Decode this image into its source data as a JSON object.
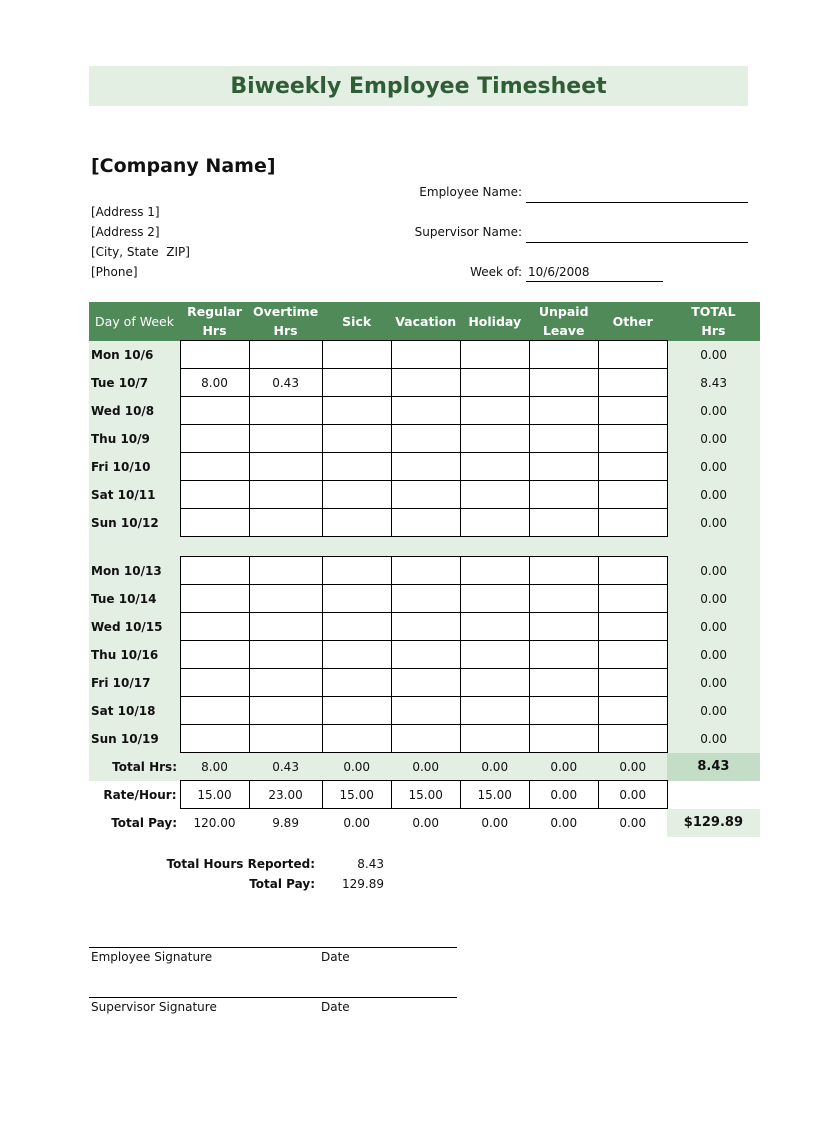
{
  "title": "Biweekly Employee Timesheet",
  "company": {
    "name": "[Company Name]",
    "address1": "[Address 1]",
    "address2": "[Address 2]",
    "city_state_zip": "[City, State  ZIP]",
    "phone": "[Phone]"
  },
  "fields": {
    "employee_name_label": "Employee Name:",
    "employee_name_value": "",
    "supervisor_name_label": "Supervisor Name:",
    "supervisor_name_value": "",
    "week_of_label": "Week of:",
    "week_of_value": "10/6/2008"
  },
  "columns": [
    "Day of Week",
    "Regular Hrs",
    "Overtime Hrs",
    "Sick",
    "Vacation",
    "Holiday",
    "Unpaid Leave",
    "Other",
    "TOTAL Hrs"
  ],
  "week1": [
    {
      "day": "Mon 10/6",
      "values": [
        "",
        "",
        "",
        "",
        "",
        "",
        ""
      ],
      "total": "0.00"
    },
    {
      "day": "Tue 10/7",
      "values": [
        "8.00",
        "0.43",
        "",
        "",
        "",
        "",
        ""
      ],
      "total": "8.43"
    },
    {
      "day": "Wed 10/8",
      "values": [
        "",
        "",
        "",
        "",
        "",
        "",
        ""
      ],
      "total": "0.00"
    },
    {
      "day": "Thu 10/9",
      "values": [
        "",
        "",
        "",
        "",
        "",
        "",
        ""
      ],
      "total": "0.00"
    },
    {
      "day": "Fri 10/10",
      "values": [
        "",
        "",
        "",
        "",
        "",
        "",
        ""
      ],
      "total": "0.00"
    },
    {
      "day": "Sat 10/11",
      "values": [
        "",
        "",
        "",
        "",
        "",
        "",
        ""
      ],
      "total": "0.00"
    },
    {
      "day": "Sun 10/12",
      "values": [
        "",
        "",
        "",
        "",
        "",
        "",
        ""
      ],
      "total": "0.00"
    }
  ],
  "week2": [
    {
      "day": "Mon 10/13",
      "values": [
        "",
        "",
        "",
        "",
        "",
        "",
        ""
      ],
      "total": "0.00"
    },
    {
      "day": "Tue 10/14",
      "values": [
        "",
        "",
        "",
        "",
        "",
        "",
        ""
      ],
      "total": "0.00"
    },
    {
      "day": "Wed 10/15",
      "values": [
        "",
        "",
        "",
        "",
        "",
        "",
        ""
      ],
      "total": "0.00"
    },
    {
      "day": "Thu 10/16",
      "values": [
        "",
        "",
        "",
        "",
        "",
        "",
        ""
      ],
      "total": "0.00"
    },
    {
      "day": "Fri 10/17",
      "values": [
        "",
        "",
        "",
        "",
        "",
        "",
        ""
      ],
      "total": "0.00"
    },
    {
      "day": "Sat 10/18",
      "values": [
        "",
        "",
        "",
        "",
        "",
        "",
        ""
      ],
      "total": "0.00"
    },
    {
      "day": "Sun 10/19",
      "values": [
        "",
        "",
        "",
        "",
        "",
        "",
        ""
      ],
      "total": "0.00"
    }
  ],
  "total_hrs": {
    "label": "Total Hrs:",
    "values": [
      "8.00",
      "0.43",
      "0.00",
      "0.00",
      "0.00",
      "0.00",
      "0.00"
    ],
    "total": "8.43"
  },
  "rate": {
    "label": "Rate/Hour:",
    "values": [
      "15.00",
      "23.00",
      "15.00",
      "15.00",
      "15.00",
      "0.00",
      "0.00"
    ]
  },
  "total_pay": {
    "label": "Total Pay:",
    "values": [
      "120.00",
      "9.89",
      "0.00",
      "0.00",
      "0.00",
      "0.00",
      "0.00"
    ],
    "total": "$129.89"
  },
  "summary": {
    "hours_label": "Total Hours Reported:",
    "hours_value": "8.43",
    "pay_label": "Total Pay:",
    "pay_value": "129.89"
  },
  "signatures": {
    "employee": "Employee Signature",
    "supervisor": "Supervisor Signature",
    "date": "Date"
  },
  "colors": {
    "header_green": "#4f8a58",
    "light_green": "#e4efe4",
    "title_text": "#2f5d35"
  }
}
